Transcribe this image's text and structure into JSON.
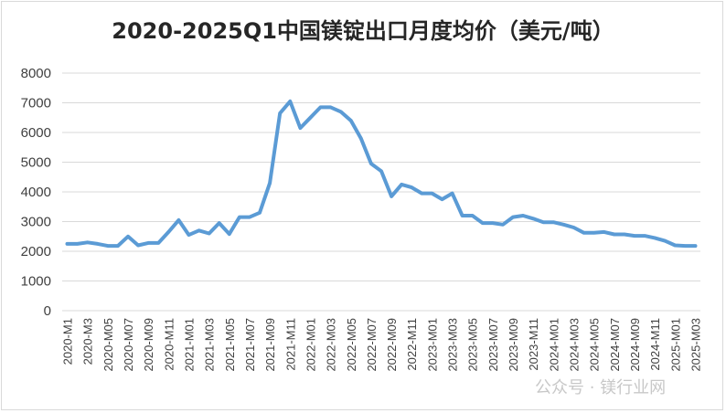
{
  "chart_data": {
    "type": "line",
    "title": "2020-2025Q1中国镁锭出口月度均价（美元/吨）",
    "xlabel": "",
    "ylabel": "",
    "ylim": [
      0,
      8000
    ],
    "yticks": [
      0,
      1000,
      2000,
      3000,
      4000,
      5000,
      6000,
      7000,
      8000
    ],
    "grid": true,
    "legend": "none",
    "color": "#5b9bd5",
    "x_tick_labels": [
      "2020-M1",
      "2020-M3",
      "2020-M05",
      "2020-M07",
      "2020-M09",
      "2020-M11",
      "2021-M01",
      "2021-M03",
      "2021-M05",
      "2021-M07",
      "2021-M09",
      "2021-M11",
      "2022-M01",
      "2022-M03",
      "2022-M05",
      "2022-M07",
      "2022-M09",
      "2022-M11",
      "2023-M01",
      "2023-M03",
      "2023-M05",
      "2023-M07",
      "2023-M09",
      "2023-M11",
      "2024-M01",
      "2024-M03",
      "2024-M05",
      "2024-M07",
      "2024-M09",
      "2024-M11",
      "2025-M01",
      "2025-M03"
    ],
    "x": [
      "2020-M1",
      "2020-M2",
      "2020-M3",
      "2020-M4",
      "2020-M05",
      "2020-M06",
      "2020-M07",
      "2020-M08",
      "2020-M09",
      "2020-M10",
      "2020-M11",
      "2020-M12",
      "2021-M01",
      "2021-M02",
      "2021-M03",
      "2021-M04",
      "2021-M05",
      "2021-M06",
      "2021-M07",
      "2021-M08",
      "2021-M09",
      "2021-M10",
      "2021-M11",
      "2021-M12",
      "2022-M01",
      "2022-M02",
      "2022-M03",
      "2022-M04",
      "2022-M05",
      "2022-M06",
      "2022-M07",
      "2022-M08",
      "2022-M09",
      "2022-M10",
      "2022-M11",
      "2022-M12",
      "2023-M01",
      "2023-M02",
      "2023-M03",
      "2023-M04",
      "2023-M05",
      "2023-M06",
      "2023-M07",
      "2023-M08",
      "2023-M09",
      "2023-M10",
      "2023-M11",
      "2023-M12",
      "2024-M01",
      "2024-M02",
      "2024-M03",
      "2024-M04",
      "2024-M05",
      "2024-M06",
      "2024-M07",
      "2024-M08",
      "2024-M09",
      "2024-M10",
      "2024-M11",
      "2024-M12",
      "2025-M01",
      "2025-M02",
      "2025-M03"
    ],
    "series": [
      {
        "values": [
          2250,
          2250,
          2300,
          2250,
          2180,
          2180,
          2500,
          2200,
          2280,
          2280,
          2650,
          3050,
          2550,
          2700,
          2600,
          2950,
          2580,
          3150,
          3150,
          3300,
          4300,
          6650,
          7050,
          6150,
          6500,
          6850,
          6850,
          6700,
          6400,
          5800,
          4950,
          4700,
          3850,
          4250,
          4150,
          3950,
          3950,
          3750,
          3950,
          3200,
          3200,
          2950,
          2950,
          2900,
          3150,
          3200,
          3100,
          2980,
          2980,
          2900,
          2800,
          2620,
          2620,
          2650,
          2570,
          2570,
          2520,
          2520,
          2450,
          2350,
          2200,
          2180,
          2180
        ]
      }
    ]
  },
  "watermark": "公众号 · 镁行业网"
}
